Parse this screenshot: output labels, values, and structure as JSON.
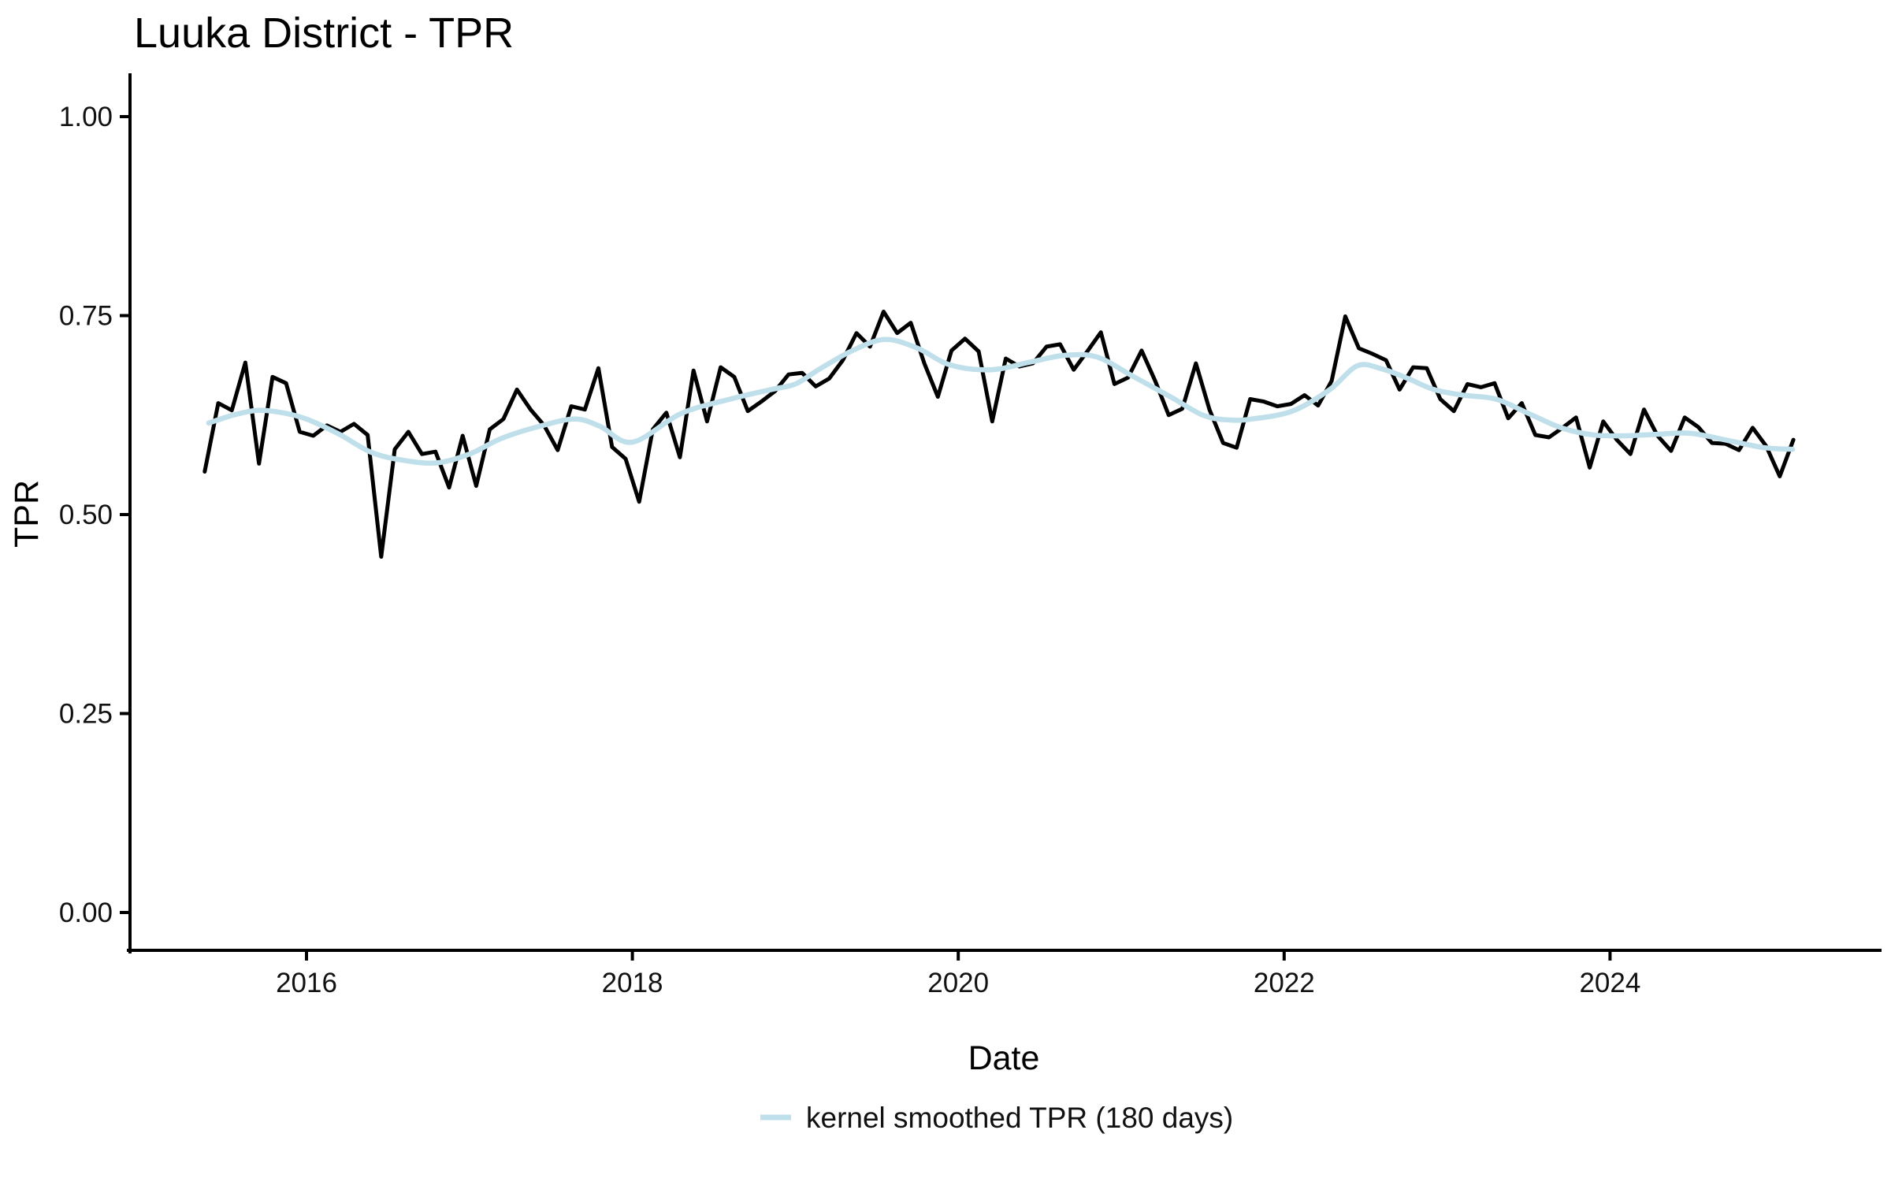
{
  "page": {
    "background": "#ffffff"
  },
  "colors": {
    "raw_line": "#000000",
    "smoothed_line": "#bfdfeb",
    "axis": "#000000",
    "text": "#111111"
  },
  "chart_data": {
    "type": "line",
    "title": "Luuka District - TPR",
    "xlabel": "Date",
    "ylabel": "TPR",
    "grid": "off",
    "legend": {
      "position": "bottom",
      "label": "kernel smoothed TPR (180 days)"
    },
    "x_ticks": [
      {
        "t": 2016,
        "label": "2016"
      },
      {
        "t": 2018,
        "label": "2018"
      },
      {
        "t": 2020,
        "label": "2020"
      },
      {
        "t": 2022,
        "label": "2022"
      },
      {
        "t": 2024,
        "label": "2024"
      }
    ],
    "y_ticks": [
      {
        "v": 0.0,
        "label": "0.00"
      },
      {
        "v": 0.25,
        "label": "0.25"
      },
      {
        "v": 0.5,
        "label": "0.50"
      },
      {
        "v": 0.75,
        "label": "0.75"
      },
      {
        "v": 1.0,
        "label": "1.00"
      }
    ],
    "xlim": [
      2015.05,
      2025.45
    ],
    "ylim": [
      -0.05,
      1.05
    ],
    "series": [
      {
        "name": "TPR (monthly)",
        "style": "raw",
        "months": [
          "2015-05",
          "2015-06",
          "2015-07",
          "2015-08",
          "2015-09",
          "2015-10",
          "2015-11",
          "2015-12",
          "2016-01",
          "2016-02",
          "2016-03",
          "2016-04",
          "2016-05",
          "2016-06",
          "2016-07",
          "2016-08",
          "2016-09",
          "2016-10",
          "2016-11",
          "2016-12",
          "2017-01",
          "2017-02",
          "2017-03",
          "2017-04",
          "2017-05",
          "2017-06",
          "2017-07",
          "2017-08",
          "2017-09",
          "2017-10",
          "2017-11",
          "2017-12",
          "2018-01",
          "2018-02",
          "2018-03",
          "2018-04",
          "2018-05",
          "2018-06",
          "2018-07",
          "2018-08",
          "2018-09",
          "2018-10",
          "2018-11",
          "2018-12",
          "2019-01",
          "2019-02",
          "2019-03",
          "2019-04",
          "2019-05",
          "2019-06",
          "2019-07",
          "2019-08",
          "2019-09",
          "2019-10",
          "2019-11",
          "2019-12",
          "2020-01",
          "2020-02",
          "2020-03",
          "2020-04",
          "2020-05",
          "2020-06",
          "2020-07",
          "2020-08",
          "2020-09",
          "2020-10",
          "2020-11",
          "2020-12",
          "2021-01",
          "2021-02",
          "2021-03",
          "2021-04",
          "2021-05",
          "2021-06",
          "2021-07",
          "2021-08",
          "2021-09",
          "2021-10",
          "2021-11",
          "2021-12",
          "2022-01",
          "2022-02",
          "2022-03",
          "2022-04",
          "2022-05",
          "2022-06",
          "2022-07",
          "2022-08",
          "2022-09",
          "2022-10",
          "2022-11",
          "2022-12",
          "2023-01",
          "2023-02",
          "2023-03",
          "2023-04",
          "2023-05",
          "2023-06",
          "2023-07",
          "2023-08",
          "2023-09",
          "2023-10",
          "2023-11",
          "2023-12",
          "2024-01",
          "2024-02",
          "2024-03",
          "2024-04",
          "2024-05",
          "2024-06",
          "2024-07",
          "2024-08",
          "2024-09",
          "2024-10",
          "2024-11",
          "2024-12",
          "2025-01",
          "2025-02"
        ],
        "values": [
          0.554,
          0.64,
          0.631,
          0.691,
          0.564,
          0.673,
          0.665,
          0.604,
          0.599,
          0.612,
          0.604,
          0.614,
          0.6,
          0.447,
          0.582,
          0.604,
          0.576,
          0.579,
          0.534,
          0.599,
          0.536,
          0.607,
          0.62,
          0.657,
          0.632,
          0.612,
          0.581,
          0.636,
          0.632,
          0.684,
          0.585,
          0.57,
          0.516,
          0.607,
          0.628,
          0.572,
          0.681,
          0.617,
          0.685,
          0.673,
          0.63,
          0.642,
          0.655,
          0.676,
          0.678,
          0.661,
          0.671,
          0.694,
          0.728,
          0.711,
          0.755,
          0.728,
          0.741,
          0.69,
          0.648,
          0.706,
          0.721,
          0.705,
          0.617,
          0.696,
          0.686,
          0.69,
          0.711,
          0.714,
          0.682,
          0.705,
          0.729,
          0.664,
          0.672,
          0.706,
          0.668,
          0.625,
          0.633,
          0.69,
          0.632,
          0.59,
          0.584,
          0.645,
          0.642,
          0.636,
          0.639,
          0.65,
          0.637,
          0.668,
          0.749,
          0.709,
          0.702,
          0.694,
          0.657,
          0.685,
          0.684,
          0.645,
          0.63,
          0.664,
          0.66,
          0.665,
          0.621,
          0.64,
          0.6,
          0.597,
          0.609,
          0.622,
          0.559,
          0.617,
          0.594,
          0.576,
          0.632,
          0.599,
          0.58,
          0.622,
          0.61,
          0.59,
          0.589,
          0.581,
          0.609,
          0.586,
          0.548,
          0.594
        ]
      },
      {
        "name": "kernel smoothed TPR (180 days)",
        "style": "smoothed",
        "x": [
          2015.4,
          2015.55,
          2015.7,
          2015.85,
          2016.0,
          2016.2,
          2016.4,
          2016.6,
          2016.8,
          2017.0,
          2017.2,
          2017.45,
          2017.65,
          2017.8,
          2018.0,
          2018.3,
          2018.6,
          2018.85,
          2019.0,
          2019.15,
          2019.35,
          2019.55,
          2019.75,
          2019.95,
          2020.2,
          2020.45,
          2020.65,
          2020.85,
          2021.07,
          2021.31,
          2021.5,
          2021.65,
          2021.8,
          2022.05,
          2022.28,
          2022.45,
          2022.6,
          2022.76,
          2022.92,
          2023.1,
          2023.3,
          2023.5,
          2023.7,
          2023.9,
          2024.1,
          2024.3,
          2024.5,
          2024.75,
          2024.95,
          2025.12
        ],
        "values": [
          0.615,
          0.625,
          0.631,
          0.628,
          0.62,
          0.601,
          0.578,
          0.568,
          0.565,
          0.576,
          0.596,
          0.612,
          0.62,
          0.611,
          0.591,
          0.627,
          0.645,
          0.657,
          0.664,
          0.683,
          0.706,
          0.72,
          0.709,
          0.688,
          0.682,
          0.692,
          0.7,
          0.698,
          0.674,
          0.647,
          0.625,
          0.619,
          0.62,
          0.63,
          0.657,
          0.687,
          0.683,
          0.671,
          0.657,
          0.65,
          0.645,
          0.627,
          0.609,
          0.6,
          0.599,
          0.601,
          0.602,
          0.592,
          0.584,
          0.582
        ]
      }
    ]
  }
}
